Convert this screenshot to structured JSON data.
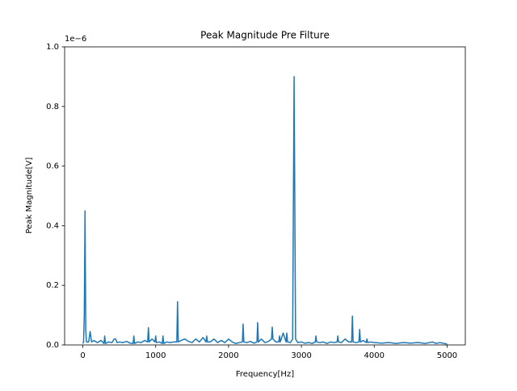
{
  "chart_data": {
    "type": "line",
    "title": "Peak Magnitude Pre Filture",
    "xlabel": "Frequency[Hz]",
    "ylabel": "Peak Magnitude[V]",
    "y_offset_label": "1e−6",
    "xlim": [
      -250,
      5250
    ],
    "ylim": [
      0,
      1.0
    ],
    "xticks": [
      0,
      1000,
      2000,
      3000,
      4000,
      5000
    ],
    "yticks": [
      {
        "value": 0,
        "label": "0.0"
      },
      {
        "value": 0.2,
        "label": "0.2"
      },
      {
        "value": 0.4,
        "label": "0.4"
      },
      {
        "value": 0.6,
        "label": "0.6"
      },
      {
        "value": 0.8,
        "label": "0.8"
      },
      {
        "value": 1.0,
        "label": "1.0"
      }
    ],
    "grid": false,
    "series": [
      {
        "color": "#1f77b4",
        "x": [
          0,
          10,
          20,
          30,
          40,
          50,
          80,
          100,
          120,
          150,
          200,
          250,
          290,
          300,
          310,
          350,
          400,
          430,
          450,
          470,
          500,
          550,
          600,
          650,
          690,
          700,
          710,
          750,
          800,
          850,
          890,
          900,
          910,
          950,
          990,
          1000,
          1010,
          1050,
          1090,
          1100,
          1110,
          1150,
          1200,
          1250,
          1290,
          1300,
          1310,
          1350,
          1400,
          1450,
          1500,
          1550,
          1600,
          1650,
          1690,
          1700,
          1710,
          1750,
          1800,
          1850,
          1900,
          1950,
          2000,
          2050,
          2100,
          2150,
          2190,
          2200,
          2210,
          2250,
          2300,
          2350,
          2390,
          2400,
          2410,
          2450,
          2500,
          2550,
          2590,
          2600,
          2610,
          2650,
          2690,
          2700,
          2710,
          2750,
          2790,
          2800,
          2810,
          2850,
          2880,
          2900,
          2920,
          2950,
          3000,
          3050,
          3100,
          3150,
          3190,
          3200,
          3210,
          3250,
          3300,
          3350,
          3400,
          3450,
          3490,
          3500,
          3510,
          3550,
          3600,
          3650,
          3690,
          3700,
          3710,
          3750,
          3790,
          3800,
          3810,
          3850,
          3890,
          3900,
          3910,
          3950,
          4000,
          4100,
          4200,
          4300,
          4400,
          4500,
          4600,
          4700,
          4800,
          4850,
          4900,
          5000
        ],
        "values": [
          0.005,
          0.01,
          0.1,
          0.45,
          0.05,
          0.01,
          0.01,
          0.045,
          0.01,
          0.015,
          0.008,
          0.015,
          0.005,
          0.03,
          0.005,
          0.01,
          0.008,
          0.02,
          0.02,
          0.008,
          0.01,
          0.008,
          0.012,
          0.006,
          0.005,
          0.03,
          0.005,
          0.01,
          0.008,
          0.015,
          0.01,
          0.058,
          0.01,
          0.02,
          0.01,
          0.03,
          0.008,
          0.01,
          0.005,
          0.03,
          0.005,
          0.01,
          0.008,
          0.01,
          0.01,
          0.145,
          0.01,
          0.015,
          0.02,
          0.012,
          0.008,
          0.02,
          0.01,
          0.025,
          0.01,
          0.03,
          0.01,
          0.01,
          0.02,
          0.008,
          0.015,
          0.008,
          0.02,
          0.01,
          0.005,
          0.008,
          0.01,
          0.07,
          0.01,
          0.008,
          0.012,
          0.006,
          0.01,
          0.075,
          0.01,
          0.02,
          0.008,
          0.012,
          0.02,
          0.06,
          0.02,
          0.01,
          0.01,
          0.03,
          0.01,
          0.04,
          0.01,
          0.04,
          0.01,
          0.008,
          0.02,
          0.9,
          0.02,
          0.008,
          0.01,
          0.006,
          0.008,
          0.005,
          0.01,
          0.03,
          0.01,
          0.008,
          0.01,
          0.005,
          0.01,
          0.008,
          0.01,
          0.03,
          0.01,
          0.008,
          0.02,
          0.01,
          0.01,
          0.097,
          0.01,
          0.008,
          0.01,
          0.052,
          0.01,
          0.015,
          0.008,
          0.02,
          0.008,
          0.01,
          0.008,
          0.006,
          0.008,
          0.005,
          0.008,
          0.006,
          0.008,
          0.005,
          0.01,
          0.005,
          0.008,
          0.003
        ]
      }
    ]
  }
}
